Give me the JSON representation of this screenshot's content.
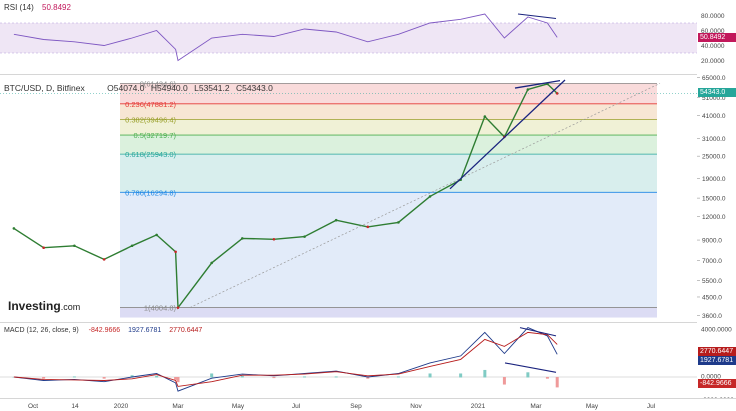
{
  "rsi": {
    "label": "RSI (14)",
    "value": "50.8492",
    "ticks": [
      "80.0000",
      "60.0000",
      "40.0000",
      "20.0000"
    ],
    "tick_values": [
      80,
      60,
      40,
      20
    ],
    "upper": 70,
    "lower": 30,
    "value_color": "#c2185b"
  },
  "main": {
    "symbol": "BTC/USD, D, Bitfinex",
    "ohlc": {
      "o": "O54074.0",
      "h": "H54940.0",
      "l": "L53541.2",
      "c": "C54343.0"
    },
    "last_price": "54343.0",
    "price_ticks": [
      "65000.0",
      "51000.0",
      "41000.0",
      "31000.0",
      "25000.0",
      "19000.0",
      "15000.0",
      "12000.0",
      "9000.0",
      "7000.0",
      "5500.0",
      "4500.0",
      "3600.0"
    ],
    "price_tick_values": [
      65000,
      51000,
      41000,
      31000,
      25000,
      19000,
      15000,
      12000,
      9000,
      7000,
      5500,
      4500,
      3600
    ],
    "watermark_brand": "Investing",
    "watermark_suffix": ".com"
  },
  "fib_levels": [
    {
      "label": "0(61434.6)",
      "price": 61434.6,
      "color": "#888888"
    },
    {
      "label": "0.236(47881.2)",
      "price": 47881.2,
      "color": "#e53935"
    },
    {
      "label": "0.382(39496.4)",
      "price": 39496.4,
      "color": "#9aa02b"
    },
    {
      "label": "0.5(32719.7)",
      "price": 32719.7,
      "color": "#4caf50"
    },
    {
      "label": "0.618(25943.0)",
      "price": 25943.0,
      "color": "#26a69a"
    },
    {
      "label": "0.786(16294.8)",
      "price": 16294.8,
      "color": "#1e88e5"
    },
    {
      "label": "1(4004.8)",
      "price": 4004.8,
      "color": "#888888"
    }
  ],
  "macd": {
    "label": "MACD (12, 26, close, 9)",
    "hist": "-842.9666",
    "macd": "1927.6781",
    "signal": "2770.6447",
    "ticks": [
      "4000.0000",
      "2000.0000",
      "0.0000",
      "-2000.0000"
    ],
    "tick_values": [
      4000,
      2000,
      0,
      -2000
    ]
  },
  "time_axis": [
    "Oct",
    "14",
    "2020",
    "Mar",
    "May",
    "Jul",
    "Sep",
    "Nov",
    "2021",
    "Mar",
    "May",
    "Jul"
  ],
  "chart_data": {
    "type": "line",
    "title": "BTC/USD, D, Bitfinex",
    "x": [
      "2019-09",
      "2019-10",
      "2019-11",
      "2019-12",
      "2020-01",
      "2020-02",
      "2020-03-10",
      "2020-03-13",
      "2020-04",
      "2020-05",
      "2020-06",
      "2020-07",
      "2020-08",
      "2020-09",
      "2020-10",
      "2020-11",
      "2020-12",
      "2021-01-08",
      "2021-01-28",
      "2021-02-21",
      "2021-03-13",
      "2021-03-23"
    ],
    "series": [
      {
        "values": [
          10500,
          8300,
          8500,
          7200,
          8500,
          9700,
          7900,
          4000,
          6900,
          9300,
          9200,
          9500,
          11600,
          10700,
          11300,
          15500,
          19000,
          41000,
          32000,
          57000,
          61000,
          54343
        ]
      }
    ],
    "ylim": [
      3600,
      65000
    ],
    "log_scale": true,
    "rsi_values": [
      55,
      48,
      45,
      40,
      50,
      60,
      35,
      20,
      50,
      55,
      52,
      62,
      58,
      45,
      55,
      70,
      75,
      82,
      50,
      78,
      70,
      50.85
    ],
    "macd_values": [
      0,
      -300,
      -200,
      -400,
      0,
      300,
      -500,
      -1200,
      -100,
      250,
      100,
      300,
      500,
      0,
      300,
      1200,
      1800,
      3800,
      2000,
      4200,
      3500,
      1927.68
    ],
    "signal_values": [
      0,
      -200,
      -250,
      -300,
      -150,
      200,
      -300,
      -800,
      -400,
      150,
      150,
      250,
      450,
      100,
      250,
      900,
      1500,
      3200,
      2600,
      3800,
      3600,
      2770.64
    ]
  }
}
